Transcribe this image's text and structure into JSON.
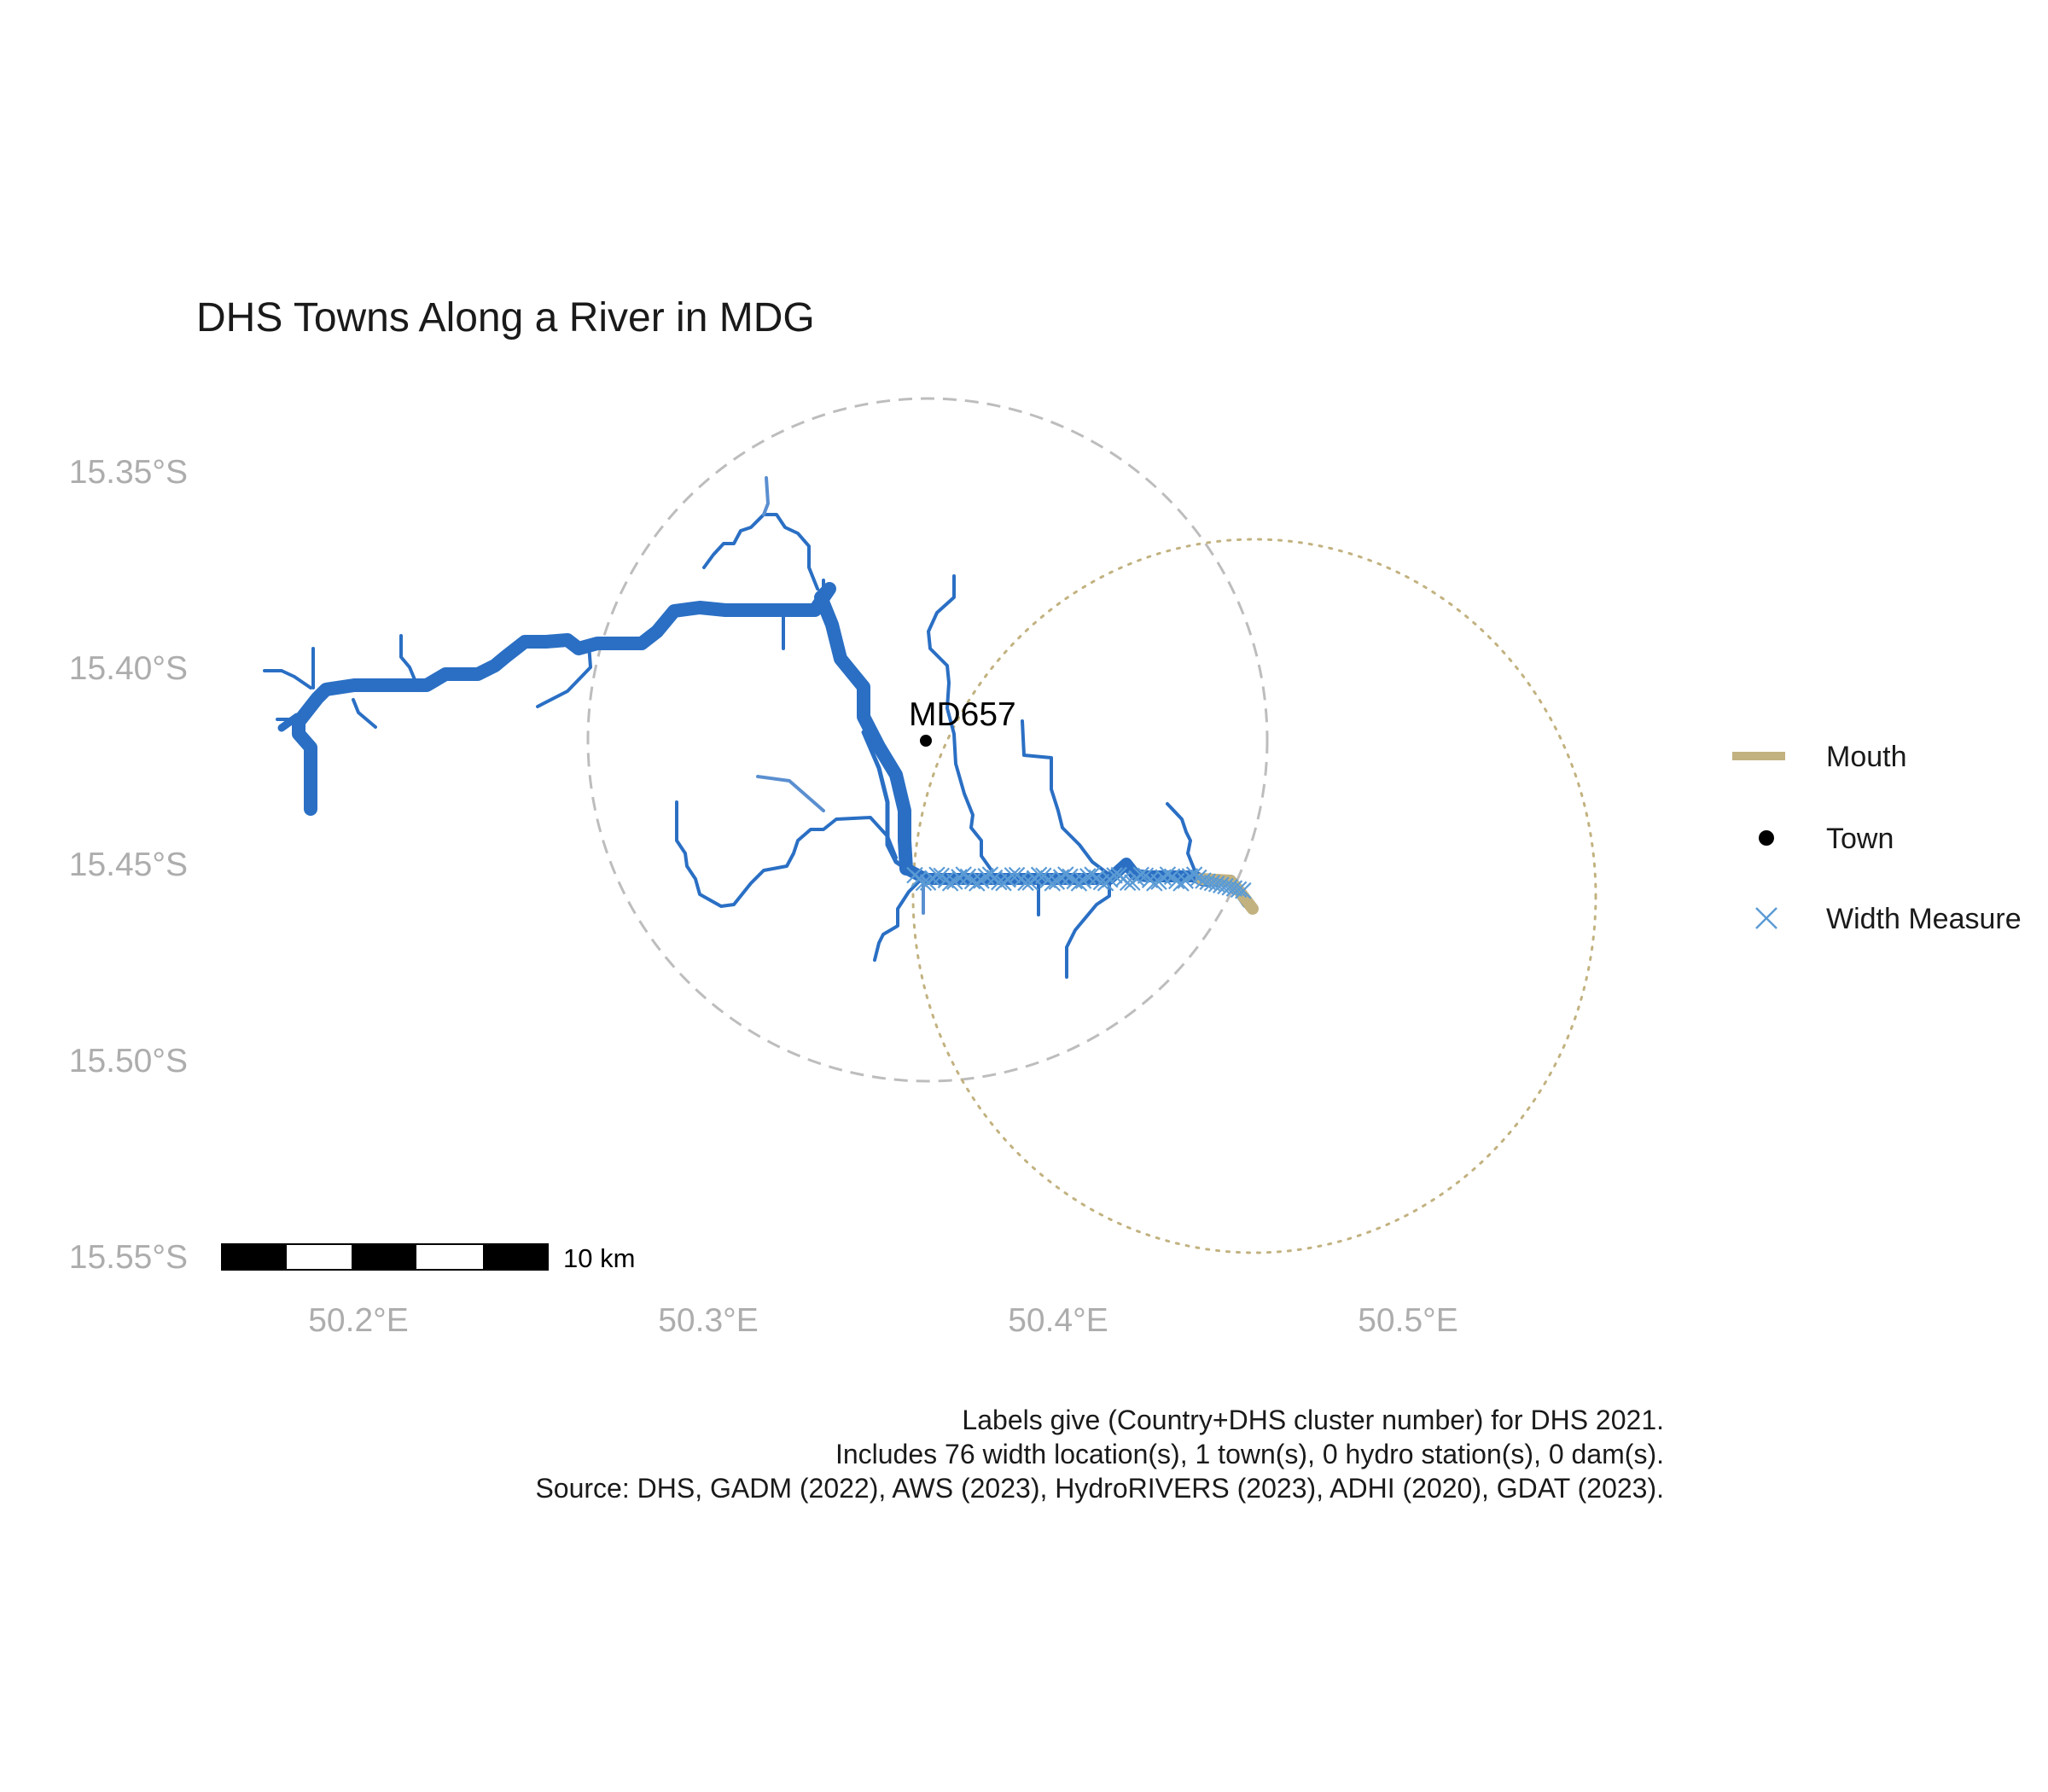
{
  "title": "DHS Towns Along a River in MDG",
  "axes": {
    "y_ticks": [
      "15.35°S",
      "15.40°S",
      "15.45°S",
      "15.50°S",
      "15.55°S"
    ],
    "x_ticks": [
      "50.2°E",
      "50.3°E",
      "50.4°E",
      "50.5°E"
    ]
  },
  "town": {
    "label": "MD657",
    "lon": 50.362,
    "lat": -15.419
  },
  "scale_bar": {
    "label": "10 km"
  },
  "legend": [
    {
      "key": "mouth",
      "label": "Mouth",
      "color": "#c2b280"
    },
    {
      "key": "town",
      "label": "Town",
      "color": "#000000"
    },
    {
      "key": "width",
      "label": "Width Measure",
      "color": "#5b9bd5"
    }
  ],
  "caption": [
    "Labels give (Country+DHS cluster number) for DHS 2021.",
    "Includes 76 width location(s), 1 town(s), 0 hydro station(s), 0 dam(s).",
    "Source: DHS, GADM (2022), AWS (2023), HydroRIVERS (2023), ADHI (2020), GDAT (2023)."
  ],
  "colors": {
    "river": "#2a6fc4",
    "river_light": "#5a8fd0",
    "width_measure": "#5b9bd5",
    "mouth": "#c2b280",
    "town_buffer": "#bdbdbd",
    "mouth_buffer": "#c2b280"
  }
}
